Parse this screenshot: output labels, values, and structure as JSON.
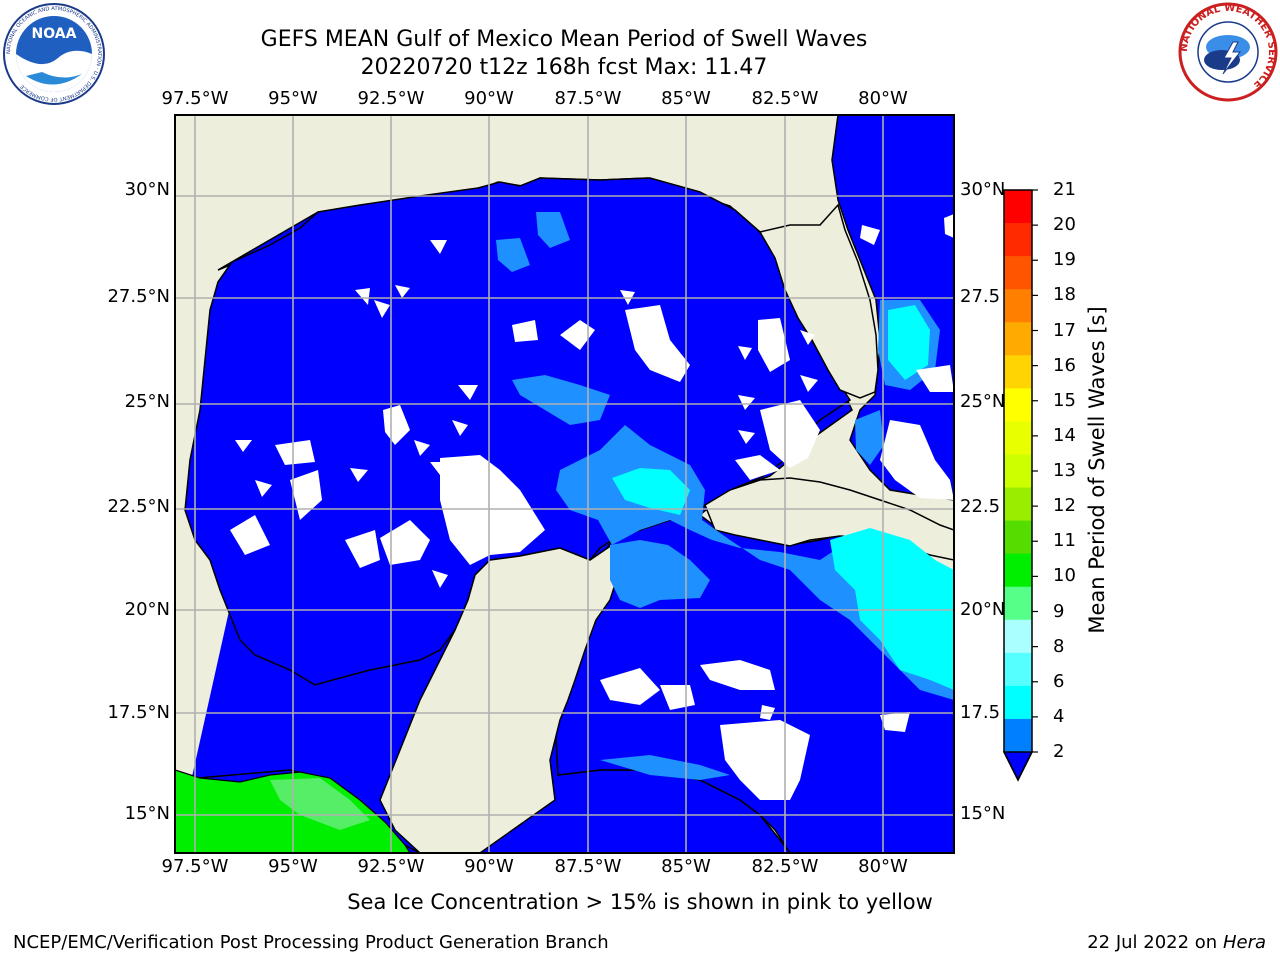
{
  "title_line1": "GEFS MEAN Gulf of Mexico Mean Period of Swell Waves",
  "title_line2": "20220720 t12z 168h fcst   Max: 11.47",
  "lon_labels": [
    "97.5°W",
    "95°W",
    "92.5°W",
    "90°W",
    "87.5°W",
    "85°W",
    "82.5°W",
    "80°W"
  ],
  "lat_labels_left": [
    "30°N",
    "27.5°N",
    "25°N",
    "22.5°N",
    "20°N",
    "17.5°N",
    "15°N"
  ],
  "lat_labels_right": [
    "30°N",
    "27.5",
    "25°N",
    "22.5",
    "20°N",
    "17.5",
    "15°N"
  ],
  "colorbar": {
    "label": "Mean Period of Swell Waves [s]",
    "ticks": [
      "21",
      "20",
      "19",
      "18",
      "17",
      "16",
      "15",
      "14",
      "13",
      "12",
      "11",
      "10",
      "9",
      "8",
      "6",
      "4",
      "2"
    ],
    "colors": [
      "#ff0000",
      "#ff2a00",
      "#ff5500",
      "#ff7f00",
      "#ffaa00",
      "#ffd400",
      "#ffff00",
      "#e8ff00",
      "#ccff00",
      "#99ee00",
      "#55dd00",
      "#00ee00",
      "#55ff88",
      "#aaffff",
      "#55ffff",
      "#00ffff",
      "#0080ff"
    ]
  },
  "colors": {
    "land": "#eeeedd",
    "ocean_low": "#0000ff",
    "ocean_mid": "#1e90ff",
    "ocean_cyan": "#00ffff",
    "grid": "#b0b0b0",
    "green": "#00ee00"
  },
  "note": "Sea Ice Concentration > 15% is shown in pink to yellow",
  "footer_left": "NCEP/EMC/Verification Post Processing Product Generation Branch",
  "footer_right_date": "22 Jul 2022 on ",
  "footer_right_host": "Hera",
  "logos": {
    "noaa_text": "NOAA",
    "noaa_ring": "NATIONAL OCEANIC AND ATMOSPHERIC ADMINISTRATION · U.S. DEPARTMENT OF COMMERCE",
    "nws_ring": "NATIONAL WEATHER SERVICE"
  }
}
